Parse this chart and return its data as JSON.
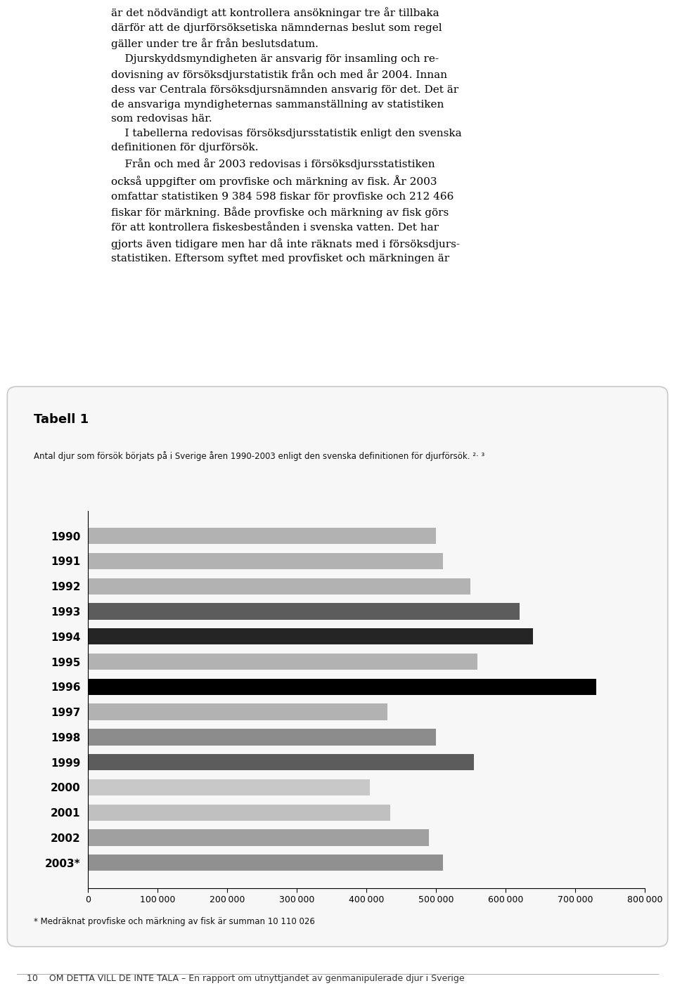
{
  "title": "Tabell 1",
  "subtitle": "Antal djur som försök börjats på i Sverige åren 1990-2003 enligt den svenska definitionen för djurförsök. ²‧³",
  "footnote": "* Medräknat provfiske och märkning av fisk är summan 10 110 026",
  "footer": "10    OM DETTA VILL DE INTE TALA – En rapport om utnyttjandet av genmanipulerade djur i Sverige",
  "body_text_lines": [
    "är det nödvändigt att kontrollera ansökningar tre år tillbaka",
    "därför att de djurförsöksetiska nämndernas beslut som regel",
    "gäller under tre år från beslutsdatum.",
    "    Djurskyddsmyndigheten är ansvarig för insamling och re-",
    "dovisning av försöksdjurstatistik från och med år 2004. Innan",
    "dess var Centrala försöksdjursnämnden ansvarig för det. Det är",
    "de ansvariga myndigheternas sammanställning av statistiken",
    "som redovisas här.",
    "    I tabellerna redovisas försöksdjursstatistik enligt den svenska",
    "definitionen för djurförsök.",
    "    Från och med år 2003 redovisas i försöksdjursstatistiken",
    "också uppgifter om provfiske och märkning av fisk. År 2003",
    "omfattar statistiken 9 384 598 fiskar för provfiske och 212 466",
    "fiskar för märkning. Både provfiske och märkning av fisk görs",
    "för att kontrollera fiskesbestånden i svenska vatten. Det har",
    "gjorts även tidigare men har då inte räknats med i försöksdjurs-",
    "statistiken. Eftersom syftet med provfisket och märkningen är"
  ],
  "years": [
    "1990",
    "1991",
    "1992",
    "1993",
    "1994",
    "1995",
    "1996",
    "1997",
    "1998",
    "1999",
    "2000",
    "2001",
    "2002",
    "2003*"
  ],
  "values": [
    500000,
    510000,
    550000,
    620000,
    640000,
    560000,
    730000,
    430000,
    500000,
    555000,
    405000,
    435000,
    490000,
    510000
  ],
  "bar_colors": [
    "#b2b2b2",
    "#b2b2b2",
    "#b2b2b2",
    "#5c5c5c",
    "#252525",
    "#b2b2b2",
    "#000000",
    "#b2b2b2",
    "#8c8c8c",
    "#5c5c5c",
    "#c8c8c8",
    "#c0c0c0",
    "#a0a0a0",
    "#909090"
  ],
  "xlim": [
    0,
    800000
  ],
  "xticks": [
    0,
    100000,
    200000,
    300000,
    400000,
    500000,
    600000,
    700000,
    800000
  ],
  "background_color": "#ffffff",
  "box_background": "#f7f7f7",
  "box_edge_color": "#c8c8c8"
}
